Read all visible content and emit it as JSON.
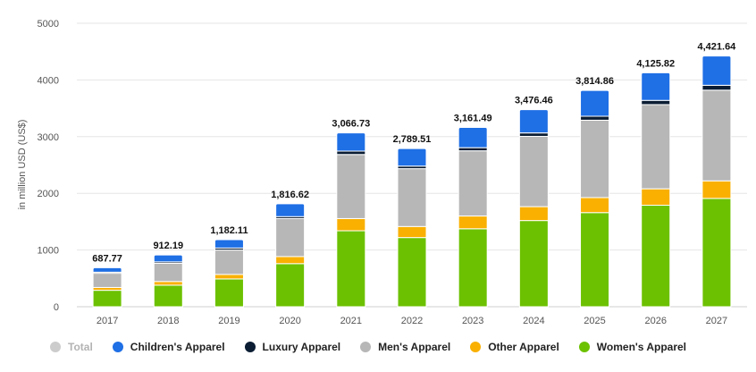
{
  "chart_data": {
    "type": "bar",
    "stacked": true,
    "categories": [
      "2017",
      "2018",
      "2019",
      "2020",
      "2021",
      "2022",
      "2023",
      "2024",
      "2025",
      "2026",
      "2027"
    ],
    "ylabel": "in million USD (US$)",
    "ylim": [
      0,
      5000
    ],
    "yticks": [
      0,
      1000,
      2000,
      3000,
      4000,
      5000
    ],
    "grid": true,
    "legend_position": "bottom",
    "totals": [
      687.77,
      912.19,
      1182.11,
      1816.62,
      3066.73,
      2789.51,
      3161.49,
      3476.46,
      3814.86,
      4125.82,
      4421.64
    ],
    "total_labels": [
      "687.77",
      "912.19",
      "1,182.11",
      "1,816.62",
      "3,066.73",
      "2,789.51",
      "3,161.49",
      "3,476.46",
      "3,814.86",
      "4,125.82",
      "4,421.64"
    ],
    "series": [
      {
        "name": "Women's Apparel",
        "color": "#6cc100",
        "values": [
          290,
          380,
          490,
          760,
          1340,
          1220,
          1375,
          1520,
          1660,
          1790,
          1910
        ]
      },
      {
        "name": "Other Apparel",
        "color": "#f9b000",
        "values": [
          50,
          65,
          80,
          125,
          215,
          195,
          225,
          245,
          265,
          290,
          310
        ]
      },
      {
        "name": "Men's Apparel",
        "color": "#b7b7b7",
        "values": [
          250,
          320,
          430,
          670,
          1130,
          1020,
          1150,
          1240,
          1365,
          1485,
          1600
        ]
      },
      {
        "name": "Luxury Apparel",
        "color": "#0b1d33",
        "values": [
          20,
          25,
          35,
          35,
          60,
          45,
          55,
          60,
          70,
          75,
          85
        ]
      },
      {
        "name": "Children's Apparel",
        "color": "#1f6fe5",
        "values": [
          77.77,
          122.19,
          147.11,
          226.62,
          321.73,
          309.51,
          356.49,
          411.46,
          454.86,
          485.82,
          516.64
        ]
      }
    ]
  },
  "legend": [
    {
      "label": "Total",
      "color": "#cccccc",
      "active": false
    },
    {
      "label": "Children's Apparel",
      "color": "#1f6fe5",
      "active": true
    },
    {
      "label": "Luxury Apparel",
      "color": "#0b1d33",
      "active": true
    },
    {
      "label": "Men's Apparel",
      "color": "#b7b7b7",
      "active": true
    },
    {
      "label": "Other Apparel",
      "color": "#f9b000",
      "active": true
    },
    {
      "label": "Women's Apparel",
      "color": "#6cc100",
      "active": true
    }
  ]
}
